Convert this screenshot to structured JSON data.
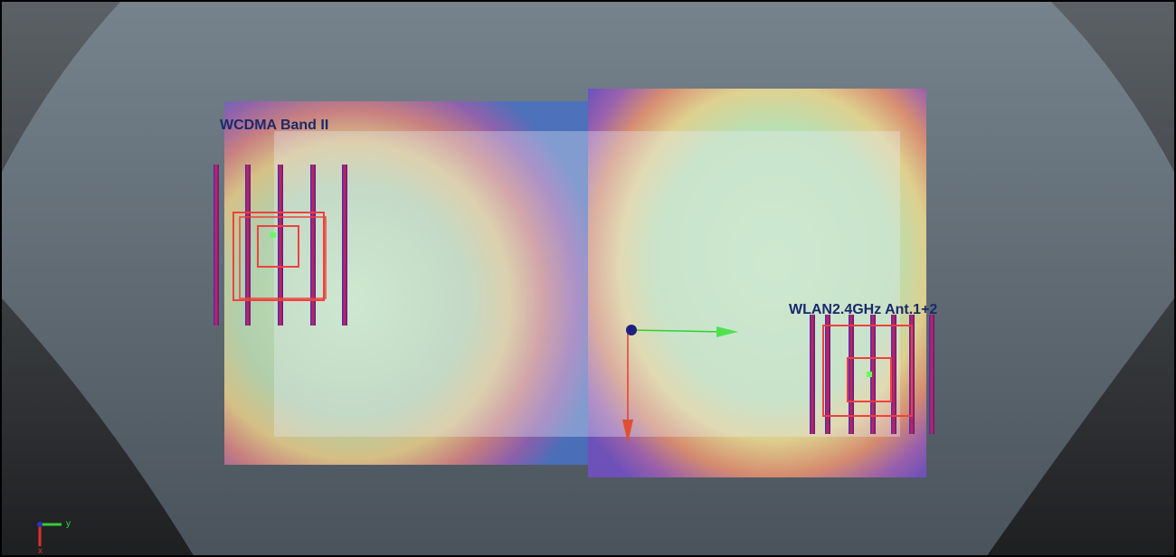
{
  "labels": {
    "left_antenna": "WCDMA Band II",
    "right_antenna": "WLAN2.4GHz Ant.1+2"
  },
  "axes": {
    "y": "y",
    "x": "x"
  }
}
